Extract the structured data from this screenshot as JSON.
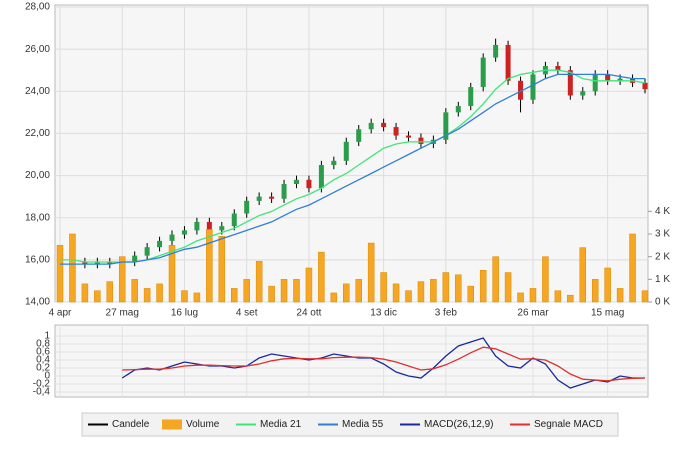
{
  "chart_data": [
    {
      "type": "candlestick",
      "categories": [
        "4 apr",
        null,
        null,
        null,
        null,
        "27 mag",
        null,
        null,
        null,
        null,
        "16 lug",
        null,
        null,
        null,
        null,
        "4 set",
        null,
        null,
        null,
        null,
        "24 ott",
        null,
        null,
        null,
        null,
        null,
        "13 dic",
        null,
        null,
        null,
        null,
        "3 feb",
        null,
        null,
        null,
        null,
        null,
        null,
        "26 mar",
        null,
        null,
        null,
        null,
        null,
        "15 mag",
        null,
        null,
        null
      ],
      "ylim": [
        14,
        28
      ],
      "yticks": [
        {
          "value": 14,
          "label": "14,00"
        },
        {
          "value": 16,
          "label": "16,00"
        },
        {
          "value": 18,
          "label": "18,00"
        },
        {
          "value": 20,
          "label": "20,00"
        },
        {
          "value": 22,
          "label": "22,00"
        },
        {
          "value": 24,
          "label": "24,00"
        },
        {
          "value": 26,
          "label": "26,00"
        },
        {
          "value": 28,
          "label": "28,00"
        }
      ],
      "y2lim": [
        0,
        13.1
      ],
      "y2ticks": [
        {
          "value": 0,
          "label": "0 K"
        },
        {
          "value": 1,
          "label": "1 K"
        },
        {
          "value": 2,
          "label": "2 K"
        },
        {
          "value": 3,
          "label": "3 K"
        },
        {
          "value": 4,
          "label": "4 K"
        }
      ],
      "grid": true,
      "up_color": "#2a9d4a",
      "down_color": "#cc2222",
      "series": [
        {
          "name": "Candele",
          "color": "#000000",
          "open": [
            16.0,
            16.1,
            15.9,
            15.8,
            15.9,
            15.8,
            15.9,
            16.2,
            16.6,
            16.9,
            17.2,
            17.4,
            17.8,
            17.4,
            17.6,
            18.2,
            18.8,
            19.0,
            18.9,
            19.6,
            19.8,
            19.4,
            20.5,
            20.7,
            21.6,
            22.2,
            22.5,
            22.3,
            21.9,
            21.8,
            21.5,
            21.7,
            23.0,
            23.3,
            24.2,
            25.6,
            26.2,
            24.5,
            23.6,
            24.8,
            25.2,
            25.0,
            23.8,
            24.0,
            24.8,
            24.5,
            24.6,
            24.4
          ],
          "high": [
            16.3,
            16.3,
            16.1,
            16.1,
            16.1,
            16.1,
            16.4,
            16.8,
            17.1,
            17.4,
            17.6,
            18.0,
            18.0,
            17.8,
            18.4,
            19.0,
            19.2,
            19.2,
            19.8,
            20.0,
            20.0,
            20.7,
            20.9,
            21.8,
            22.4,
            22.7,
            22.7,
            22.5,
            22.1,
            22.0,
            21.9,
            23.2,
            23.5,
            24.4,
            25.8,
            26.5,
            26.4,
            24.7,
            25.0,
            25.4,
            25.4,
            25.2,
            24.2,
            25.0,
            25.0,
            24.8,
            24.8,
            24.6
          ],
          "low": [
            15.8,
            15.7,
            15.6,
            15.6,
            15.6,
            15.6,
            15.7,
            16.0,
            16.4,
            16.7,
            17.0,
            17.2,
            17.2,
            17.2,
            17.4,
            18.0,
            18.6,
            18.7,
            18.7,
            19.4,
            19.2,
            19.2,
            20.3,
            20.5,
            21.4,
            22.0,
            22.1,
            21.7,
            21.6,
            21.3,
            21.3,
            21.5,
            22.8,
            23.1,
            24.0,
            25.4,
            24.3,
            23.0,
            23.4,
            24.6,
            24.8,
            23.6,
            23.6,
            23.8,
            24.3,
            24.3,
            24.2,
            23.9
          ],
          "close": [
            16.1,
            15.9,
            15.8,
            15.9,
            15.8,
            15.9,
            16.2,
            16.6,
            16.9,
            17.2,
            17.4,
            17.8,
            17.4,
            17.6,
            18.2,
            18.8,
            19.0,
            18.9,
            19.6,
            19.8,
            19.4,
            20.5,
            20.7,
            21.6,
            22.2,
            22.5,
            22.3,
            21.9,
            21.8,
            21.5,
            21.7,
            23.0,
            23.3,
            24.2,
            25.6,
            26.2,
            24.5,
            23.6,
            24.8,
            25.2,
            25.0,
            23.8,
            24.0,
            24.8,
            24.5,
            24.6,
            24.4,
            24.1
          ]
        },
        {
          "name": "Volume",
          "color": "#f5a623",
          "axis": "y2",
          "values": [
            2.5,
            3.0,
            0.8,
            0.5,
            0.9,
            2.0,
            1.0,
            0.6,
            0.8,
            2.5,
            0.5,
            0.4,
            3.2,
            2.9,
            0.6,
            1.0,
            1.8,
            0.7,
            1.0,
            1.0,
            1.5,
            2.2,
            0.4,
            0.8,
            1.0,
            2.6,
            1.3,
            0.8,
            0.5,
            0.9,
            1.0,
            1.3,
            1.2,
            0.7,
            1.4,
            2.0,
            1.3,
            0.4,
            0.6,
            2.0,
            0.5,
            0.3,
            2.4,
            1.0,
            1.5,
            0.6,
            3.0,
            0.5
          ]
        },
        {
          "name": "Media 21",
          "color": "#3ee67a",
          "values": [
            16.0,
            16.0,
            15.9,
            15.9,
            15.9,
            15.9,
            15.9,
            16.0,
            16.2,
            16.4,
            16.6,
            16.9,
            17.1,
            17.3,
            17.5,
            17.8,
            18.1,
            18.3,
            18.6,
            18.9,
            19.1,
            19.4,
            19.8,
            20.1,
            20.5,
            20.9,
            21.3,
            21.5,
            21.6,
            21.6,
            21.6,
            21.9,
            22.3,
            22.8,
            23.4,
            24.1,
            24.6,
            24.8,
            24.9,
            25.0,
            25.0,
            24.9,
            24.6,
            24.5,
            24.5,
            24.5,
            24.5,
            24.4
          ]
        },
        {
          "name": "Media 55",
          "color": "#2f7fd8",
          "values": [
            15.8,
            15.8,
            15.8,
            15.8,
            15.8,
            15.9,
            15.9,
            16.0,
            16.1,
            16.3,
            16.5,
            16.6,
            16.8,
            17.0,
            17.2,
            17.4,
            17.6,
            17.8,
            18.1,
            18.4,
            18.6,
            18.9,
            19.2,
            19.5,
            19.8,
            20.1,
            20.4,
            20.7,
            21.0,
            21.3,
            21.6,
            21.9,
            22.2,
            22.6,
            23.0,
            23.4,
            23.7,
            24.0,
            24.3,
            24.6,
            24.8,
            24.8,
            24.8,
            24.8,
            24.8,
            24.7,
            24.6,
            24.6
          ]
        }
      ]
    },
    {
      "type": "line",
      "ylim": [
        -0.4,
        1
      ],
      "yticks": [
        {
          "value": -0.4,
          "label": "-0,4"
        },
        {
          "value": -0.2,
          "label": "-0,2"
        },
        0,
        {
          "value": 0.2,
          "label": "0,2"
        },
        {
          "value": 0.4,
          "label": "0,4"
        },
        {
          "value": 0.6,
          "label": "0,6"
        },
        {
          "value": 0.8,
          "label": "0,8"
        },
        1
      ],
      "series": [
        {
          "name": "MACD(26,12,9)",
          "color": "#1a2a9a",
          "values": [
            null,
            null,
            null,
            null,
            null,
            -0.05,
            0.15,
            0.2,
            0.15,
            0.25,
            0.35,
            0.3,
            0.25,
            0.25,
            0.2,
            0.25,
            0.45,
            0.55,
            0.5,
            0.45,
            0.4,
            0.45,
            0.55,
            0.5,
            0.45,
            0.45,
            0.3,
            0.1,
            0.0,
            -0.05,
            0.2,
            0.5,
            0.75,
            0.85,
            0.95,
            0.5,
            0.25,
            0.2,
            0.45,
            0.3,
            -0.1,
            -0.3,
            -0.2,
            -0.1,
            -0.15,
            0.0,
            -0.05,
            -0.05
          ]
        },
        {
          "name": "Segnale MACD",
          "color": "#e03030",
          "values": [
            null,
            null,
            null,
            null,
            null,
            0.15,
            0.16,
            0.17,
            0.17,
            0.2,
            0.25,
            0.27,
            0.27,
            0.26,
            0.25,
            0.25,
            0.3,
            0.38,
            0.43,
            0.44,
            0.43,
            0.43,
            0.46,
            0.47,
            0.47,
            0.46,
            0.42,
            0.35,
            0.25,
            0.15,
            0.18,
            0.28,
            0.42,
            0.58,
            0.72,
            0.68,
            0.55,
            0.42,
            0.43,
            0.4,
            0.25,
            0.05,
            -0.08,
            -0.1,
            -0.12,
            -0.08,
            -0.06,
            -0.05
          ]
        }
      ]
    }
  ]
}
